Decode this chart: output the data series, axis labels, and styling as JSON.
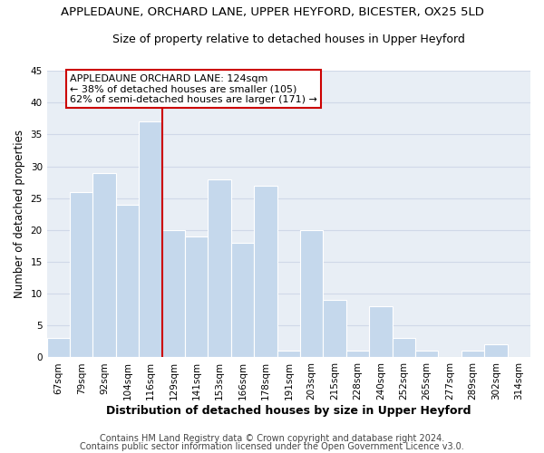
{
  "title": "APPLEDAUNE, ORCHARD LANE, UPPER HEYFORD, BICESTER, OX25 5LD",
  "subtitle": "Size of property relative to detached houses in Upper Heyford",
  "xlabel": "Distribution of detached houses by size in Upper Heyford",
  "ylabel": "Number of detached properties",
  "bin_labels": [
    "67sqm",
    "79sqm",
    "92sqm",
    "104sqm",
    "116sqm",
    "129sqm",
    "141sqm",
    "153sqm",
    "166sqm",
    "178sqm",
    "191sqm",
    "203sqm",
    "215sqm",
    "228sqm",
    "240sqm",
    "252sqm",
    "265sqm",
    "277sqm",
    "289sqm",
    "302sqm",
    "314sqm"
  ],
  "bar_heights": [
    3,
    26,
    29,
    24,
    37,
    20,
    19,
    28,
    18,
    27,
    1,
    20,
    9,
    1,
    8,
    3,
    1,
    0,
    1,
    2,
    0
  ],
  "bar_color": "#c5d8ec",
  "bar_edge_color": "#ffffff",
  "vline_x_index": 4.5,
  "vline_color": "#cc0000",
  "annotation_line1": "APPLEDAUNE ORCHARD LANE: 124sqm",
  "annotation_line2": "← 38% of detached houses are smaller (105)",
  "annotation_line3": "62% of semi-detached houses are larger (171) →",
  "annotation_box_color": "#ffffff",
  "annotation_box_edge": "#cc0000",
  "ylim": [
    0,
    45
  ],
  "yticks": [
    0,
    5,
    10,
    15,
    20,
    25,
    30,
    35,
    40,
    45
  ],
  "footer1": "Contains HM Land Registry data © Crown copyright and database right 2024.",
  "footer2": "Contains public sector information licensed under the Open Government Licence v3.0.",
  "background_color": "#ffffff",
  "plot_bg_color": "#e8eef5",
  "grid_color": "#d0d8e8",
  "title_fontsize": 9.5,
  "subtitle_fontsize": 9,
  "xlabel_fontsize": 9,
  "ylabel_fontsize": 8.5,
  "tick_fontsize": 7.5,
  "annotation_fontsize": 8,
  "footer_fontsize": 7
}
